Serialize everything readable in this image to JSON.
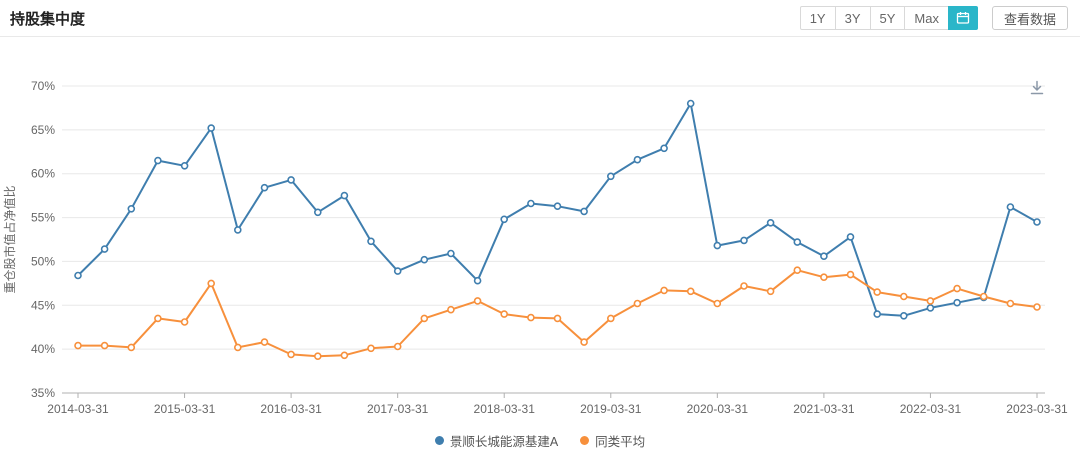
{
  "header": {
    "title": "持股集中度",
    "range_buttons": [
      {
        "label": "1Y",
        "active": false
      },
      {
        "label": "3Y",
        "active": false
      },
      {
        "label": "5Y",
        "active": false
      },
      {
        "label": "Max",
        "active": false
      }
    ],
    "calendar_button_active": true,
    "view_data_label": "查看数据"
  },
  "colors": {
    "accent_teal": "#2ab6c9",
    "axis_text": "#666666",
    "grid_line": "#e8e8e8"
  },
  "icons": {
    "calendar": "calendar-icon",
    "download": "download-icon"
  },
  "chart_data": {
    "type": "line",
    "title": "持股集中度",
    "xlabel": "",
    "ylabel": "重仓股市值占净值比",
    "ylim": [
      35,
      70
    ],
    "ytick_step": 5,
    "ytick_suffix": "%",
    "grid": true,
    "legend_position": "bottom",
    "x_tick_every": 4,
    "x_tick_labels": [
      "2014-03-31",
      "2015-03-31",
      "2016-03-31",
      "2017-03-31",
      "2018-03-31",
      "2019-03-31",
      "2020-03-31",
      "2021-03-31",
      "2022-03-31",
      "2023-03-31"
    ],
    "x": [
      "2014-03-31",
      "2014-06-30",
      "2014-09-30",
      "2014-12-31",
      "2015-03-31",
      "2015-06-30",
      "2015-09-30",
      "2015-12-31",
      "2016-03-31",
      "2016-06-30",
      "2016-09-30",
      "2016-12-31",
      "2017-03-31",
      "2017-06-30",
      "2017-09-30",
      "2017-12-31",
      "2018-03-31",
      "2018-06-30",
      "2018-09-30",
      "2018-12-31",
      "2019-03-31",
      "2019-06-30",
      "2019-09-30",
      "2019-12-31",
      "2020-03-31",
      "2020-06-30",
      "2020-09-30",
      "2020-12-31",
      "2021-03-31",
      "2021-06-30",
      "2021-09-30",
      "2021-12-31",
      "2022-03-31",
      "2022-06-30",
      "2022-09-30",
      "2022-12-31",
      "2023-03-31"
    ],
    "series": [
      {
        "name": "景顺长城能源基建A",
        "color": "#3f7eae",
        "values": [
          48.4,
          51.4,
          56.0,
          61.5,
          60.9,
          65.2,
          53.6,
          58.4,
          59.3,
          55.6,
          57.5,
          52.3,
          48.9,
          50.2,
          50.9,
          47.8,
          54.8,
          56.6,
          56.3,
          55.7,
          59.7,
          61.6,
          62.9,
          68.0,
          51.8,
          52.4,
          54.4,
          52.2,
          50.6,
          52.8,
          44.0,
          43.8,
          44.7,
          45.3,
          45.9,
          56.2,
          54.5
        ]
      },
      {
        "name": "同类平均",
        "color": "#f7903c",
        "values": [
          40.4,
          40.4,
          40.2,
          43.5,
          43.1,
          47.5,
          40.2,
          40.8,
          39.4,
          39.2,
          39.3,
          40.1,
          40.3,
          43.5,
          44.5,
          45.5,
          44.0,
          43.6,
          43.5,
          40.8,
          43.5,
          45.2,
          46.7,
          46.6,
          45.2,
          47.2,
          46.6,
          49.0,
          48.2,
          48.5,
          46.5,
          46.0,
          45.5,
          46.9,
          46.0,
          45.2,
          44.8
        ]
      }
    ]
  }
}
